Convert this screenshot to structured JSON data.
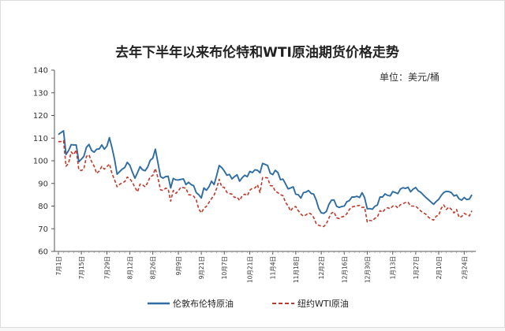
{
  "chart_data": {
    "type": "line",
    "title": "去年下半年以来布伦特和WTI原油期货价格走势",
    "unit_label": "单位：美元/桶",
    "ylim": [
      60,
      140
    ],
    "yticks": [
      60,
      70,
      80,
      90,
      100,
      110,
      120,
      130,
      140
    ],
    "x_labels": [
      "7月1日",
      "7月15日",
      "7月29日",
      "8月12日",
      "8月26日",
      "9月9日",
      "9月21日",
      "10月7日",
      "10月21日",
      "11月4日",
      "11月18日",
      "12月2日",
      "12月16日",
      "12月30日",
      "1月13日",
      "1月27日",
      "2月10日",
      "2月24日"
    ],
    "legend_position": "bottom",
    "series": [
      {
        "name": "伦敦布伦特原油",
        "color": "#2e6da4",
        "style": "solid",
        "values": [
          111.6,
          112.4,
          113.2,
          102.8,
          104.5,
          107.1,
          107.0,
          107.0,
          99.6,
          100.7,
          102.0,
          106.0,
          107.2,
          104.6,
          103.8,
          105.1,
          105.2,
          107.0,
          105.1,
          106.5,
          110.2,
          105.8,
          100.6,
          94.1,
          95.2,
          96.3,
          97.0,
          99.3,
          98.0,
          95.0,
          92.3,
          94.8,
          97.4,
          96.0,
          95.6,
          97.3,
          100.2,
          101.2,
          105.1,
          99.2,
          93.0,
          92.3,
          93.0,
          93.2,
          88.0,
          92.2,
          91.6,
          91.5,
          91.8,
          92.0,
          89.5,
          90.5,
          89.5,
          89.0,
          86.0,
          85.0,
          83.6,
          88.0,
          87.0,
          88.5,
          91.0,
          89.5,
          93.4,
          97.9,
          97.0,
          95.5,
          93.6,
          94.0,
          92.0,
          93.0,
          93.8,
          91.0,
          92.5,
          93.6,
          93.0,
          95.3,
          94.8,
          96.0,
          95.8,
          94.7,
          98.8,
          98.4,
          97.9,
          94.5,
          93.9,
          95.8,
          94.8,
          91.7,
          91.9,
          89.8,
          87.6,
          88.0,
          88.5,
          85.2,
          85.0,
          83.5,
          85.9,
          86.2,
          86.9,
          85.6,
          85.3,
          82.7,
          79.0,
          77.0,
          76.8,
          77.6,
          80.8,
          82.6,
          82.7,
          79.9,
          79.4,
          79.8,
          80.0,
          81.9,
          82.4,
          84.0,
          84.0,
          84.3,
          83.8,
          85.9,
          83.7,
          78.8,
          78.9,
          78.6,
          79.9,
          80.5,
          84.0,
          84.0,
          85.4,
          84.7,
          84.5,
          86.4,
          86.0,
          85.5,
          87.5,
          88.1,
          87.8,
          88.3,
          86.3,
          87.5,
          88.2,
          86.7,
          86.1,
          84.9,
          83.8,
          82.8,
          81.8,
          80.8,
          82.0,
          83.0,
          84.7,
          86.0,
          86.5,
          86.4,
          85.9,
          84.5,
          84.9,
          83.2,
          82.6,
          83.8,
          82.9,
          83.1,
          85.0
        ],
        "y_unit": "美元/桶"
      },
      {
        "name": "纽约WTI原油",
        "color": "#c0392b",
        "style": "dashed",
        "values": [
          108.4,
          108.5,
          108.9,
          97.6,
          98.9,
          103.9,
          102.7,
          104.8,
          96.0,
          95.7,
          96.4,
          102.0,
          102.6,
          99.7,
          97.6,
          94.4,
          95.5,
          97.5,
          96.3,
          97.4,
          98.6,
          94.4,
          91.6,
          88.5,
          89.6,
          90.3,
          90.8,
          92.8,
          92.0,
          90.5,
          88.2,
          86.3,
          89.7,
          89.4,
          88.5,
          90.4,
          93.0,
          93.5,
          96.6,
          92.6,
          87.2,
          86.9,
          87.9,
          87.6,
          82.2,
          86.9,
          85.6,
          86.7,
          88.3,
          88.1,
          87.9,
          85.0,
          84.9,
          84.4,
          82.7,
          78.7,
          77.0,
          79.0,
          79.9,
          81.6,
          83.3,
          84.8,
          87.8,
          91.8,
          88.5,
          88.2,
          86.1,
          85.5,
          85.3,
          83.8,
          84.0,
          82.5,
          84.6,
          85.3,
          84.6,
          87.0,
          87.9,
          88.0,
          89.4,
          86.0,
          92.6,
          92.6,
          92.4,
          89.0,
          88.9,
          86.5,
          85.9,
          85.0,
          84.6,
          81.6,
          80.1,
          77.8,
          79.5,
          79.8,
          78.0,
          76.5,
          75.6,
          76.1,
          77.0,
          76.5,
          75.0,
          72.3,
          71.5,
          71.2,
          71.0,
          72.2,
          74.8,
          76.9,
          77.4,
          74.8,
          74.5,
          75.2,
          75.5,
          76.6,
          78.5,
          79.6,
          79.9,
          80.1,
          80.3,
          79.4,
          79.5,
          73.0,
          73.7,
          73.5,
          74.6,
          75.2,
          78.0,
          77.3,
          78.6,
          79.3,
          78.8,
          80.0,
          80.2,
          79.2,
          80.6,
          81.0,
          81.6,
          81.7,
          80.0,
          80.0,
          80.0,
          78.9,
          77.8,
          77.0,
          76.4,
          75.1,
          74.3,
          73.8,
          75.5,
          76.0,
          79.0,
          80.5,
          78.5,
          79.6,
          78.5,
          77.0,
          78.5,
          75.0,
          75.4,
          76.8,
          76.2,
          75.7,
          77.9
        ],
        "y_unit": "美元/桶"
      }
    ]
  }
}
